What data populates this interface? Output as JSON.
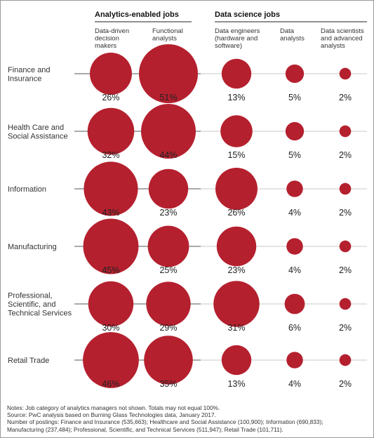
{
  "chart_data": {
    "type": "bubble",
    "groups": [
      {
        "title": "Analytics-enabled jobs",
        "columns": [
          0,
          1
        ]
      },
      {
        "title": "Data science jobs",
        "columns": [
          2,
          3,
          4
        ]
      }
    ],
    "columns": [
      {
        "label_lines": [
          "Data-driven",
          "decision",
          "makers"
        ]
      },
      {
        "label_lines": [
          "Functional",
          "analysts"
        ]
      },
      {
        "label_lines": [
          "Data engineers",
          "(hardware and",
          "software)"
        ]
      },
      {
        "label_lines": [
          "Data",
          "analysts"
        ]
      },
      {
        "label_lines": [
          "Data scientists",
          "and advanced",
          "analysts"
        ]
      }
    ],
    "rows": [
      {
        "label_lines": [
          "Finance and",
          "Insurance"
        ],
        "values": [
          26,
          51,
          13,
          5,
          2
        ]
      },
      {
        "label_lines": [
          "Health Care and",
          "Social Assistance"
        ],
        "values": [
          32,
          44,
          15,
          5,
          2
        ]
      },
      {
        "label_lines": [
          "Information"
        ],
        "values": [
          43,
          23,
          26,
          4,
          2
        ]
      },
      {
        "label_lines": [
          "Manufacturing"
        ],
        "values": [
          45,
          25,
          23,
          4,
          2
        ]
      },
      {
        "label_lines": [
          "Professional,",
          "Scientific, and",
          "Technical Services"
        ],
        "values": [
          30,
          29,
          31,
          6,
          2
        ]
      },
      {
        "label_lines": [
          "Retail Trade"
        ],
        "values": [
          46,
          35,
          13,
          4,
          2
        ]
      }
    ],
    "value_suffix": "%",
    "colors": {
      "bubble": "#b5202e",
      "line": "#555555",
      "line_light": "#c9c9c9"
    }
  },
  "notes": [
    "Notes: Job category of analytics managers not shown. Totals may not equal 100%.",
    "Source: PwC analysis based on Burning Glass Technologies data, January 2017.",
    "Number of postings: Finance and Insurance (535,663); Healthcare and Social Assistance (100,900); Information (690,833);",
    "Manufacturing (237,484); Professional, Scientific, and Technical Services (511,947); Retail Trade (101,711)."
  ]
}
